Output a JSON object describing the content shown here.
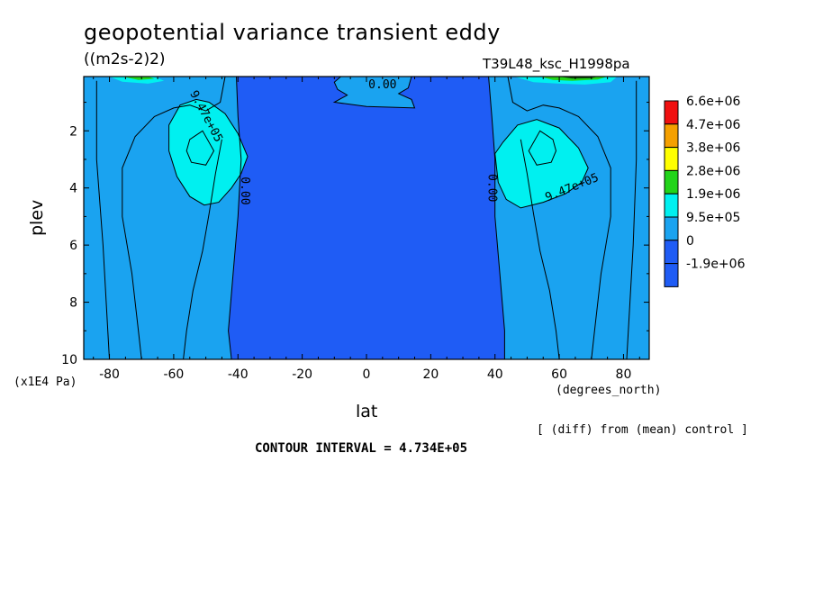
{
  "title": "geopotential variance transient eddy",
  "units": "((m2s-2)2)",
  "run_name": "T39L48_ksc_H1998pa",
  "x_unit": "(degrees_north)",
  "y_unit": "(x1E4 Pa)",
  "comparison_note": "[ (diff) from (mean) control ]",
  "contour_interval": "CONTOUR INTERVAL = 4.734E+05",
  "colors": {
    "neg": "#1f5cf5",
    "zero": "#1aa3f0",
    "c1": "#00f0f0",
    "c2": "#22d41a",
    "c3": "#ffff00",
    "c4": "#f5a000",
    "c5": "#f01010"
  },
  "chart_data": {
    "type": "contour",
    "xlabel": "lat",
    "ylabel": "plev",
    "xlim": [
      -88,
      88
    ],
    "ylim": [
      10,
      0.1
    ],
    "x_ticks": [
      -80,
      -60,
      -40,
      -20,
      0,
      20,
      40,
      60,
      80
    ],
    "y_ticks": [
      2,
      4,
      6,
      8,
      10
    ],
    "contour_labels": [
      {
        "text": "9.47e+05",
        "lat": -50,
        "plev": 1.5
      },
      {
        "text": "0.00",
        "lat": -38,
        "plev": 4.1
      },
      {
        "text": "0.00",
        "lat": 5,
        "plev": 0.4
      },
      {
        "text": "0.00",
        "lat": 39,
        "plev": 4.0
      },
      {
        "text": "9.47e+05",
        "lat": 64,
        "plev": 4.0
      }
    ],
    "colorbar": [
      {
        "label": "6.6e+06",
        "color": "#f01010"
      },
      {
        "label": "4.7e+06",
        "color": "#f5a000"
      },
      {
        "label": "3.8e+06",
        "color": "#ffff00"
      },
      {
        "label": "2.8e+06",
        "color": "#22d41a"
      },
      {
        "label": "1.9e+06",
        "color": "#00f0f0"
      },
      {
        "label": "9.5e+05",
        "color": "#1aa3f0"
      },
      {
        "label": "0",
        "color": "#1f5cf5"
      },
      {
        "label": "-1.9e+06",
        "color": null
      }
    ]
  }
}
